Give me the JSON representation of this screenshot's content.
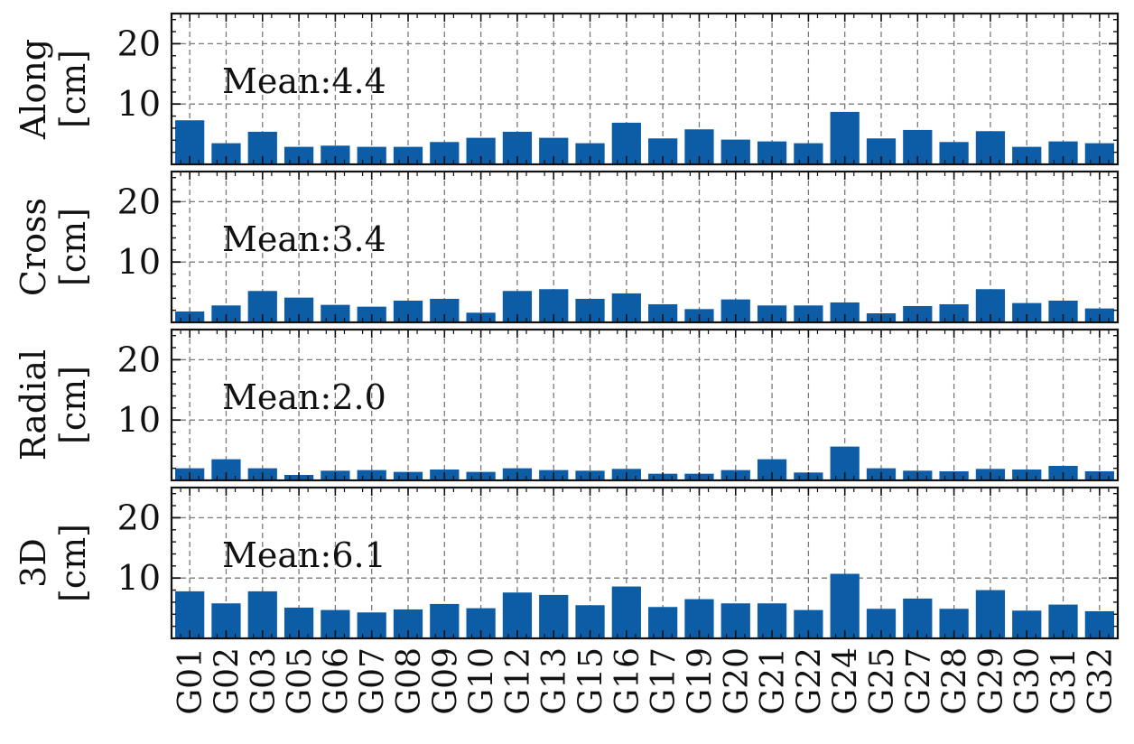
{
  "chart_data": {
    "type": "bar",
    "categories": [
      "G01",
      "G02",
      "G03",
      "G05",
      "G06",
      "G07",
      "G08",
      "G09",
      "G10",
      "G12",
      "G13",
      "G15",
      "G16",
      "G17",
      "G19",
      "G20",
      "G21",
      "G22",
      "G24",
      "G25",
      "G27",
      "G28",
      "G29",
      "G30",
      "G31",
      "G32"
    ],
    "ylim": [
      0,
      25
    ],
    "yticks": [
      10,
      20
    ],
    "grid": true,
    "bar_color": "#0c5da5",
    "panels": [
      {
        "ylabel": [
          "Along",
          "[cm]"
        ],
        "annotation": "Mean:4.4",
        "values": [
          7.3,
          3.5,
          5.4,
          2.9,
          3.1,
          2.9,
          2.9,
          3.7,
          4.4,
          5.4,
          4.4,
          3.5,
          6.9,
          4.3,
          5.8,
          4.1,
          3.8,
          3.5,
          8.7,
          4.3,
          5.7,
          3.7,
          5.5,
          2.9,
          3.8,
          3.5
        ]
      },
      {
        "ylabel": [
          "Cross",
          "[cm]"
        ],
        "annotation": "Mean:3.4",
        "values": [
          1.8,
          2.8,
          5.2,
          4.1,
          2.9,
          2.6,
          3.6,
          3.9,
          1.6,
          5.2,
          5.5,
          3.9,
          4.8,
          3.0,
          2.2,
          3.8,
          2.8,
          2.8,
          3.3,
          1.5,
          2.7,
          3.0,
          5.5,
          3.2,
          3.6,
          2.3
        ]
      },
      {
        "ylabel": [
          "Radial",
          "[cm]"
        ],
        "annotation": "Mean:2.0",
        "values": [
          2.0,
          3.5,
          2.0,
          0.9,
          1.6,
          1.7,
          1.4,
          1.8,
          1.4,
          2.0,
          1.7,
          1.6,
          1.9,
          1.1,
          1.1,
          1.7,
          3.5,
          1.3,
          5.6,
          2.0,
          1.6,
          1.5,
          1.9,
          1.8,
          2.4,
          1.5
        ]
      },
      {
        "ylabel": [
          "3D",
          "[cm]"
        ],
        "annotation": "Mean:6.1",
        "values": [
          7.8,
          5.8,
          7.8,
          5.1,
          4.7,
          4.3,
          4.8,
          5.7,
          5.0,
          7.6,
          7.2,
          5.5,
          8.6,
          5.2,
          6.5,
          5.8,
          5.8,
          4.7,
          10.7,
          4.9,
          6.6,
          4.9,
          8.0,
          4.6,
          5.6,
          4.5
        ]
      }
    ]
  }
}
